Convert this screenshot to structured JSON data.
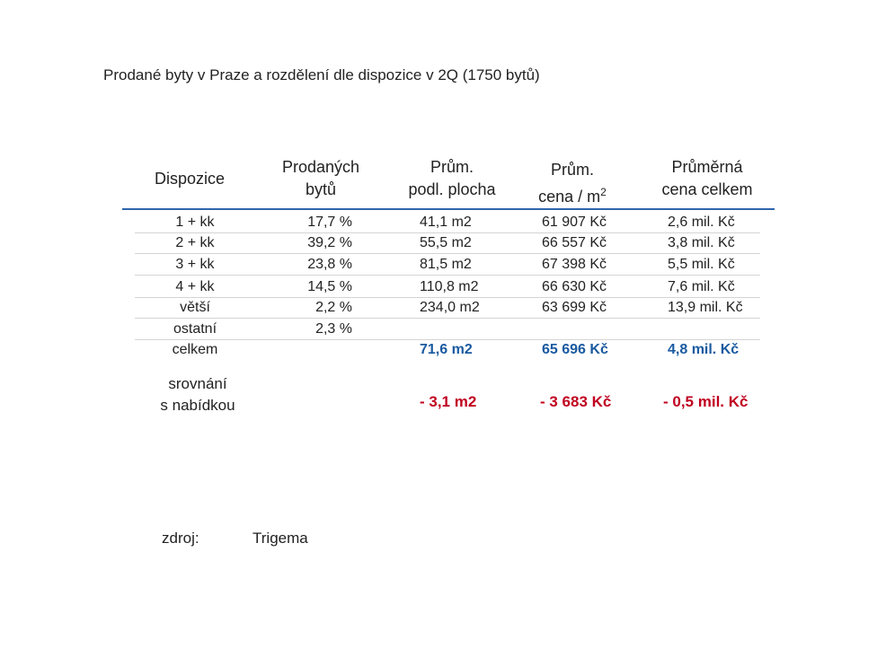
{
  "title": "Prodané byty v Praze a rozdělení dle dispozice v 2Q (1750 bytů)",
  "colors": {
    "accent": "#1a5aa0",
    "negative": "#c00020",
    "rule": "#2e64ae"
  },
  "headers": {
    "dispozice": "Dispozice",
    "prodanych_1": "Prodaných",
    "prodanych_2": "bytů",
    "plocha_1": "Prům.",
    "plocha_2": "podl. plocha",
    "cena_1": "Prům.",
    "cena_2": "cena / m",
    "cena_sup": "2",
    "celkem_1": "Průměrná",
    "celkem_2": "cena celkem"
  },
  "rows": [
    {
      "dispozice": "1 + kk",
      "podil": "17,7 %",
      "plocha": "41,1 m2",
      "cena_m2": "61 907 Kč",
      "cena_celkem": "2,6 mil. Kč"
    },
    {
      "dispozice": "2 + kk",
      "podil": "39,2 %",
      "plocha": "55,5 m2",
      "cena_m2": "66 557 Kč",
      "cena_celkem": "3,8 mil. Kč"
    },
    {
      "dispozice": "3 + kk",
      "podil": "23,8 %",
      "plocha": "81,5 m2",
      "cena_m2": "67 398 Kč",
      "cena_celkem": "5,5 mil. Kč"
    },
    {
      "dispozice": "4 + kk",
      "podil": "14,5 %",
      "plocha": "110,8 m2",
      "cena_m2": "66 630 Kč",
      "cena_celkem": "7,6 mil. Kč"
    },
    {
      "dispozice": "větší",
      "podil": "2,2 %",
      "plocha": "234,0 m2",
      "cena_m2": "63 699 Kč",
      "cena_celkem": "13,9 mil. Kč"
    },
    {
      "dispozice": "ostatní",
      "podil": "2,3 %",
      "plocha": "",
      "cena_m2": "",
      "cena_celkem": ""
    }
  ],
  "total": {
    "label": "celkem",
    "plocha": "71,6 m2",
    "cena_m2": "65 696 Kč",
    "cena_celkem": "4,8 mil. Kč"
  },
  "comparison": {
    "label_1": "srovnání",
    "label_2": "s nabídkou",
    "plocha": "- 3,1 m2",
    "cena_m2": "- 3 683 Kč",
    "cena_celkem": "- 0,5 mil. Kč"
  },
  "source": {
    "label": "zdroj:",
    "value": "Trigema"
  }
}
